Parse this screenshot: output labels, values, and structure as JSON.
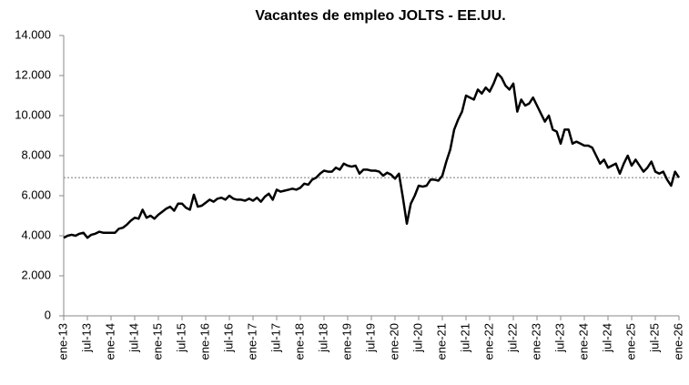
{
  "chart_data": {
    "type": "line",
    "title": "Vacantes de empleo JOLTS - EE.UU.",
    "categories": [
      "ene-13",
      null,
      null,
      null,
      null,
      null,
      "jul-13",
      null,
      null,
      null,
      null,
      null,
      "ene-14",
      null,
      null,
      null,
      null,
      null,
      "jul-14",
      null,
      null,
      null,
      null,
      null,
      "ene-15",
      null,
      null,
      null,
      null,
      null,
      "jul-15",
      null,
      null,
      null,
      null,
      null,
      "ene-16",
      null,
      null,
      null,
      null,
      null,
      "jul-16",
      null,
      null,
      null,
      null,
      null,
      "ene-17",
      null,
      null,
      null,
      null,
      null,
      "jul-17",
      null,
      null,
      null,
      null,
      null,
      "ene-18",
      null,
      null,
      null,
      null,
      null,
      "jul-18",
      null,
      null,
      null,
      null,
      null,
      "ene-19",
      null,
      null,
      null,
      null,
      null,
      "jul-19",
      null,
      null,
      null,
      null,
      null,
      "ene-20",
      null,
      null,
      null,
      null,
      null,
      "jul-20",
      null,
      null,
      null,
      null,
      null,
      "ene-21",
      null,
      null,
      null,
      null,
      null,
      "jul-21",
      null,
      null,
      null,
      null,
      null,
      "ene-22",
      null,
      null,
      null,
      null,
      null,
      "jul-22",
      null,
      null,
      null,
      null,
      null,
      "ene-23",
      null,
      null,
      null,
      null,
      null,
      "jul-23",
      null,
      null,
      null,
      null,
      null,
      "ene-24",
      null,
      null,
      null,
      null,
      null,
      "jul-24",
      null,
      null,
      null,
      null,
      null,
      "ene-25",
      null,
      null,
      null,
      null,
      null,
      "jul-25",
      null,
      null,
      null,
      null,
      null,
      "ene-26"
    ],
    "series": [
      {
        "color": "#000000",
        "values": [
          3900,
          4000,
          4050,
          4000,
          4100,
          4150,
          3900,
          4050,
          4100,
          4200,
          4150,
          4150,
          4150,
          4150,
          4350,
          4400,
          4550,
          4750,
          4900,
          4850,
          5300,
          4900,
          5000,
          4850,
          5050,
          5200,
          5350,
          5450,
          5250,
          5600,
          5600,
          5400,
          5300,
          6050,
          5450,
          5500,
          5650,
          5800,
          5700,
          5850,
          5900,
          5800,
          6000,
          5850,
          5800,
          5800,
          5750,
          5850,
          5750,
          5900,
          5700,
          5950,
          6100,
          5800,
          6300,
          6200,
          6250,
          6300,
          6350,
          6300,
          6400,
          6600,
          6550,
          6800,
          6900,
          7100,
          7250,
          7200,
          7200,
          7400,
          7300,
          7600,
          7500,
          7450,
          7500,
          7100,
          7300,
          7300,
          7250,
          7250,
          7200,
          7000,
          7150,
          7050,
          6850,
          7100,
          5900,
          4600,
          5600,
          6000,
          6500,
          6450,
          6500,
          6800,
          6800,
          6750,
          7000,
          7700,
          8300,
          9300,
          9800,
          10200,
          11000,
          10900,
          10800,
          11300,
          11100,
          11400,
          11200,
          11600,
          12100,
          11900,
          11500,
          11300,
          11600,
          10200,
          10800,
          10500,
          10600,
          10900,
          10500,
          10100,
          9700,
          10000,
          9300,
          9200,
          8600,
          9300,
          9300,
          8600,
          8700,
          8600,
          8500,
          8500,
          8400,
          8000,
          7600,
          7800,
          7400,
          7500,
          7600,
          7100,
          7600,
          8000,
          7500,
          7800,
          7500,
          7200,
          7400,
          7700,
          7200,
          7100,
          7200,
          6800,
          6500,
          7200,
          6900
        ]
      }
    ],
    "ylim": [
      0,
      14000
    ],
    "yticks": [
      0,
      {
        "value": 2000,
        "label": "2.000"
      },
      {
        "value": 4000,
        "label": "4.000"
      },
      {
        "value": 6000,
        "label": "6.000"
      },
      {
        "value": 8000,
        "label": "8.000"
      },
      {
        "value": 10000,
        "label": "10.000"
      },
      {
        "value": 12000,
        "label": "12.000"
      },
      {
        "value": 14000,
        "label": "14.000"
      }
    ],
    "reference_line": {
      "value": 6900,
      "color": "#888888"
    },
    "grid": false
  }
}
